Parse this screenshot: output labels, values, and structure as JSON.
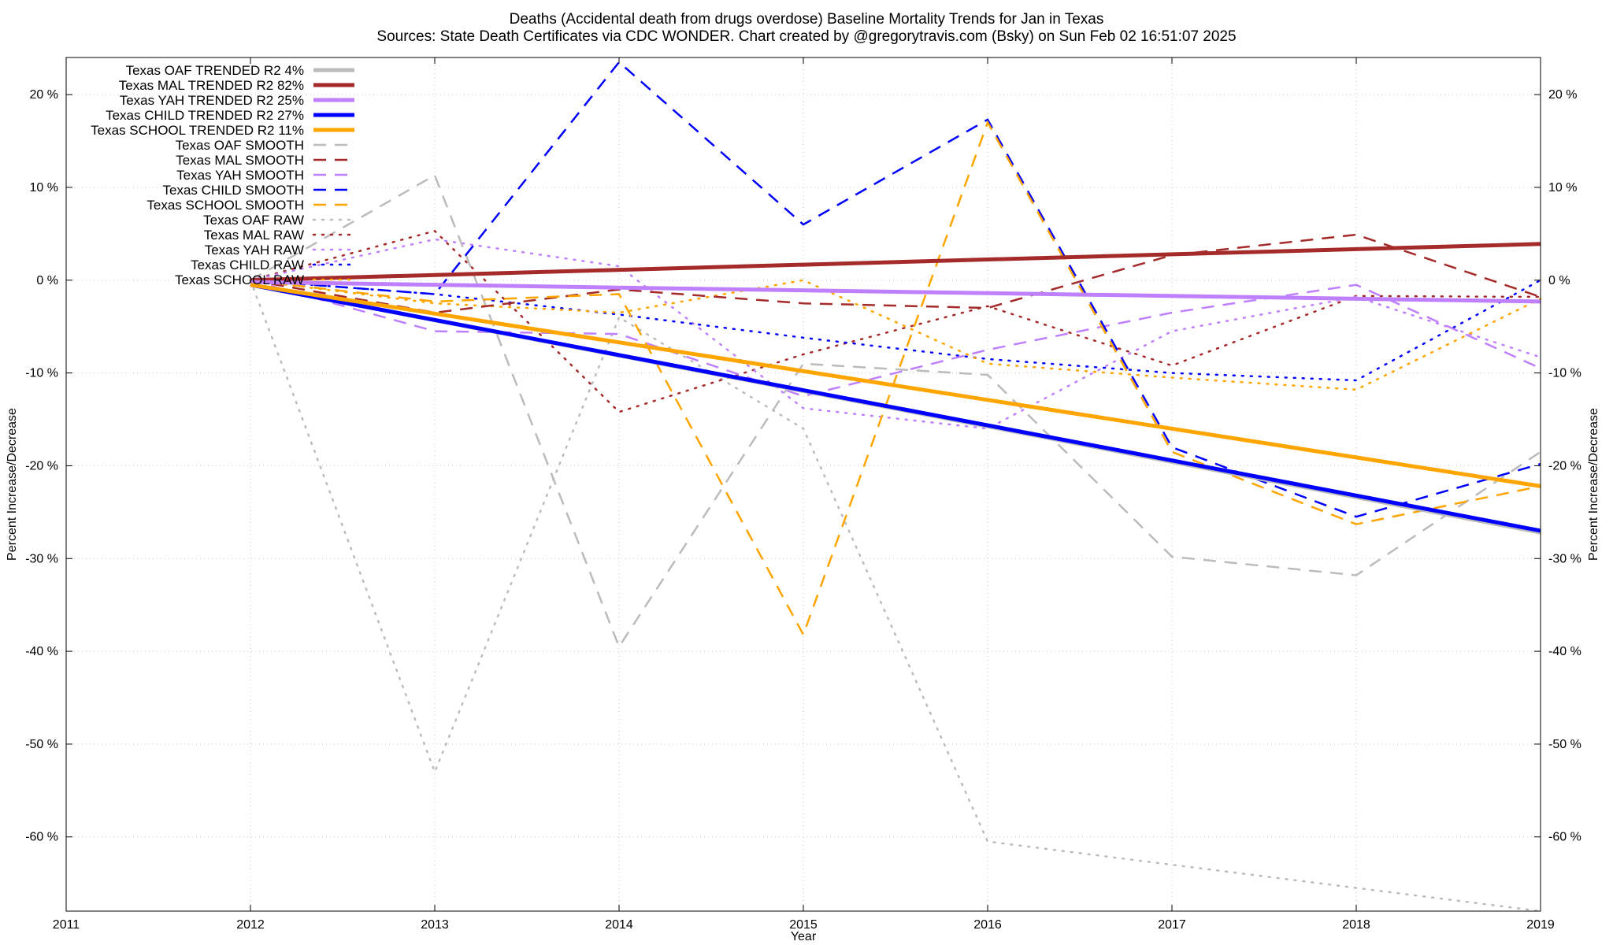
{
  "title_line1": "Deaths (Accidental death from drugs overdose)  Baseline Mortality Trends for Jan in Texas",
  "title_line2": "Sources: State Death Certificates via CDC WONDER.              Chart created by @gregorytravis.com (Bsky) on Sun Feb 02 16:51:07 2025",
  "colors": {
    "OAF": "#bbbbbb",
    "MAL": "#a52a2a",
    "YAH": "#bf80ff",
    "CHILD": "#0000ff",
    "SCHOOL": "#ffa500",
    "grid": "#c8c8c8"
  },
  "chart_data": {
    "type": "line",
    "xlabel": "Year",
    "ylabel": "Percent Increase/Decrease",
    "xlim": [
      2011,
      2019
    ],
    "ylim": [
      -68,
      24
    ],
    "grid": true,
    "legend_position": "top-left",
    "x_ticks": [
      "2011",
      "2012",
      "2013",
      "2014",
      "2015",
      "2016",
      "2017",
      "2018",
      "2019"
    ],
    "y_ticks": [
      {
        "value": 20,
        "label": "20 %"
      },
      {
        "value": 10,
        "label": "10 %"
      },
      {
        "value": 0,
        "label": "0 %"
      },
      {
        "value": -10,
        "label": "-10 %"
      },
      {
        "value": -20,
        "label": "-20 %"
      },
      {
        "value": -30,
        "label": "-30 %"
      },
      {
        "value": -40,
        "label": "-40 %"
      },
      {
        "value": -50,
        "label": "-50 %"
      },
      {
        "value": -60,
        "label": "-60 %"
      }
    ],
    "series": [
      {
        "name": "Texas OAF TRENDED R2   4%",
        "group": "OAF",
        "style": "trend",
        "x": [
          2012,
          2019
        ],
        "y": [
          -0.5,
          -27.2
        ]
      },
      {
        "name": "Texas MAL TRENDED R2  82%",
        "group": "MAL",
        "style": "trend",
        "x": [
          2012,
          2019
        ],
        "y": [
          0.0,
          3.9
        ]
      },
      {
        "name": "Texas YAH TRENDED R2  25%",
        "group": "YAH",
        "style": "trend",
        "x": [
          2012,
          2019
        ],
        "y": [
          -0.2,
          -2.3
        ]
      },
      {
        "name": "Texas CHILD TRENDED R2  27%",
        "group": "CHILD",
        "style": "trend",
        "x": [
          2012,
          2019
        ],
        "y": [
          -0.5,
          -27.0
        ]
      },
      {
        "name": "Texas SCHOOL TRENDED R2  11%",
        "group": "SCHOOL",
        "style": "trend",
        "x": [
          2012,
          2019
        ],
        "y": [
          -0.5,
          -22.2
        ]
      },
      {
        "name": "Texas OAF SMOOTH",
        "group": "OAF",
        "style": "smooth",
        "x": [
          2012,
          2013,
          2014,
          2015,
          2016,
          2017,
          2018,
          2019
        ],
        "y": [
          0.0,
          11.3,
          -39.5,
          -9.0,
          -10.2,
          -29.8,
          -31.8,
          -18.5
        ]
      },
      {
        "name": "Texas MAL SMOOTH",
        "group": "MAL",
        "style": "smooth",
        "x": [
          2012,
          2013,
          2014,
          2015,
          2016,
          2017,
          2018,
          2019
        ],
        "y": [
          0.0,
          -3.5,
          -1.0,
          -2.5,
          -3.0,
          2.7,
          4.9,
          -1.8
        ]
      },
      {
        "name": "Texas YAH SMOOTH",
        "group": "YAH",
        "style": "smooth",
        "x": [
          2012,
          2013,
          2014,
          2015,
          2016,
          2017,
          2018,
          2019
        ],
        "y": [
          0.0,
          -5.5,
          -5.8,
          -12.5,
          -7.5,
          -3.5,
          -0.5,
          -9.5
        ]
      },
      {
        "name": "Texas CHILD SMOOTH",
        "group": "CHILD",
        "style": "smooth",
        "x": [
          2012,
          2013,
          2014,
          2015,
          2016,
          2017,
          2018,
          2019
        ],
        "y": [
          0.0,
          -1.5,
          23.5,
          6.0,
          17.3,
          -18.0,
          -25.5,
          -19.8
        ]
      },
      {
        "name": "Texas SCHOOL SMOOTH",
        "group": "SCHOOL",
        "style": "smooth",
        "x": [
          2012,
          2013,
          2014,
          2015,
          2016,
          2017,
          2018,
          2019
        ],
        "y": [
          0.0,
          -2.3,
          -1.5,
          -38.2,
          17.0,
          -18.5,
          -26.3,
          -22.2
        ]
      },
      {
        "name": "Texas OAF RAW",
        "group": "OAF",
        "style": "raw",
        "x": [
          2012,
          2013,
          2014,
          2015,
          2016,
          2017,
          2018,
          2019
        ],
        "y": [
          0.0,
          -53.0,
          -4.0,
          -16.0,
          -60.5,
          -63.0,
          -65.5,
          -68.0
        ]
      },
      {
        "name": "Texas MAL RAW",
        "group": "MAL",
        "style": "raw",
        "x": [
          2012,
          2013,
          2014,
          2015,
          2016,
          2017,
          2018,
          2019
        ],
        "y": [
          0.0,
          5.3,
          -14.2,
          -8.0,
          -2.8,
          -9.2,
          -1.7,
          -1.8
        ]
      },
      {
        "name": "Texas YAH RAW",
        "group": "YAH",
        "style": "raw",
        "x": [
          2012,
          2013,
          2014,
          2015,
          2016,
          2017,
          2018,
          2019
        ],
        "y": [
          0.0,
          4.4,
          1.5,
          -13.8,
          -16.0,
          -5.5,
          -1.8,
          -8.3
        ]
      },
      {
        "name": "Texas CHILD RAW",
        "group": "CHILD",
        "style": "raw",
        "x": [
          2012,
          2013,
          2014,
          2015,
          2016,
          2017,
          2018,
          2019
        ],
        "y": [
          0.0,
          -1.5,
          -3.7,
          -6.2,
          -8.5,
          -10.0,
          -10.8,
          0.0
        ]
      },
      {
        "name": "Texas SCHOOL RAW",
        "group": "SCHOOL",
        "style": "raw",
        "x": [
          2012,
          2013,
          2014,
          2015,
          2016,
          2017,
          2018,
          2019
        ],
        "y": [
          0.0,
          -2.5,
          -3.5,
          0.0,
          -9.0,
          -10.5,
          -11.8,
          -2.0
        ]
      }
    ]
  }
}
